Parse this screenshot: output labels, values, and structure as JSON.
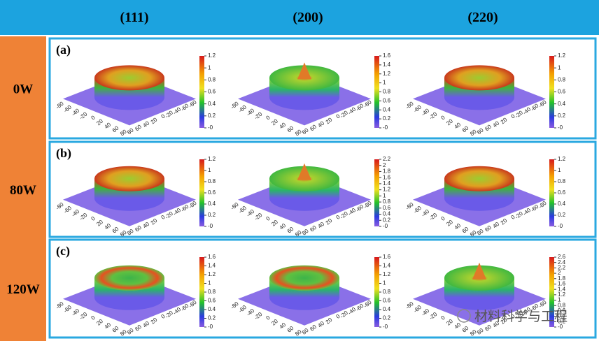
{
  "header": {
    "columns": [
      "(111)",
      "(200)",
      "(220)"
    ]
  },
  "axis_ticks": [
    "-80",
    "-60",
    "-40",
    "-20",
    "0",
    "20",
    "40",
    "60",
    "80"
  ],
  "rows": [
    {
      "label": "0W",
      "panel": "(a)",
      "colorbars": [
        [
          "1.2",
          "1",
          "0.8",
          "0.6",
          "0.4",
          "0.2",
          "-0"
        ],
        [
          "1.6",
          "1.4",
          "1.2",
          "1",
          "0.8",
          "0.6",
          "0.4",
          "0.2",
          "-0"
        ],
        [
          "1.2",
          "1",
          "0.8",
          "0.6",
          "0.4",
          "0.2",
          "-0"
        ]
      ]
    },
    {
      "label": "80W",
      "panel": "(b)",
      "colorbars": [
        [
          "1.2",
          "1",
          "0.8",
          "0.6",
          "0.4",
          "0.2",
          "-0"
        ],
        [
          "2.2",
          "2",
          "1.8",
          "1.6",
          "1.4",
          "1.2",
          "1",
          "0.8",
          "0.6",
          "0.4",
          "0.2",
          "-0"
        ],
        [
          "1.2",
          "1",
          "0.8",
          "0.6",
          "0.4",
          "0.2",
          "-0"
        ]
      ]
    },
    {
      "label": "120W",
      "panel": "(c)",
      "colorbars": [
        [
          "1.6",
          "1.4",
          "1.2",
          "1",
          "0.8",
          "0.6",
          "0.4",
          "0.2",
          "-0"
        ],
        [
          "1.6",
          "1.4",
          "1.2",
          "1",
          "0.8",
          "0.6",
          "0.4",
          "0.2",
          "-0"
        ],
        [
          "2.6",
          "2.4",
          "2.2",
          "2",
          "1.8",
          "1.6",
          "1.4",
          "1.2",
          "1",
          "0.8",
          "0.6",
          "0.4",
          "0.2",
          "-0"
        ]
      ]
    }
  ],
  "watermark": "材料科学与工程"
}
